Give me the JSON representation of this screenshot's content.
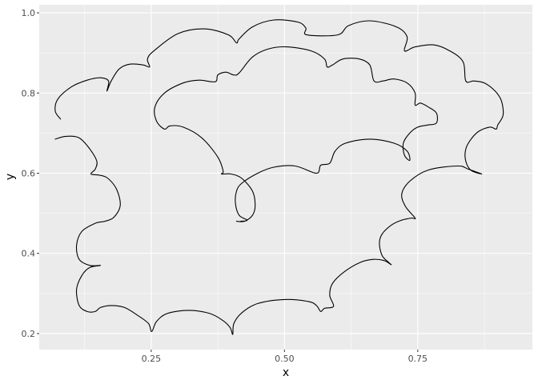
{
  "chart_data": {
    "type": "line",
    "title": "",
    "xlabel": "x",
    "ylabel": "y",
    "xlim": [
      0.04,
      0.965
    ],
    "ylim": [
      0.16,
      1.02
    ],
    "x_ticks": [
      0.25,
      0.5,
      0.75
    ],
    "x_tick_labels": [
      "0.25",
      "0.50",
      "0.75"
    ],
    "y_ticks": [
      0.2,
      0.4,
      0.6,
      0.8,
      1.0
    ],
    "y_tick_labels": [
      "0.2",
      "0.4",
      "0.6",
      "0.8",
      "1.0"
    ],
    "grid": true,
    "legend": "none",
    "colors": {
      "panel": "#ebebeb",
      "grid": "#ffffff",
      "line": "#000000",
      "tick": "#4d4d4d"
    },
    "series": [
      {
        "points": [
          [
            0.08,
            0.735
          ],
          [
            0.07,
            0.755
          ],
          [
            0.075,
            0.785
          ],
          [
            0.1,
            0.815
          ],
          [
            0.13,
            0.832
          ],
          [
            0.155,
            0.838
          ],
          [
            0.17,
            0.83
          ],
          [
            0.167,
            0.805
          ],
          [
            0.175,
            0.83
          ],
          [
            0.19,
            0.86
          ],
          [
            0.21,
            0.872
          ],
          [
            0.235,
            0.87
          ],
          [
            0.247,
            0.865
          ],
          [
            0.243,
            0.885
          ],
          [
            0.255,
            0.905
          ],
          [
            0.3,
            0.948
          ],
          [
            0.35,
            0.96
          ],
          [
            0.395,
            0.945
          ],
          [
            0.41,
            0.925
          ],
          [
            0.415,
            0.935
          ],
          [
            0.44,
            0.965
          ],
          [
            0.48,
            0.982
          ],
          [
            0.525,
            0.977
          ],
          [
            0.54,
            0.962
          ],
          [
            0.542,
            0.945
          ],
          [
            0.6,
            0.945
          ],
          [
            0.62,
            0.968
          ],
          [
            0.66,
            0.98
          ],
          [
            0.71,
            0.965
          ],
          [
            0.73,
            0.94
          ],
          [
            0.725,
            0.905
          ],
          [
            0.745,
            0.915
          ],
          [
            0.78,
            0.92
          ],
          [
            0.81,
            0.905
          ],
          [
            0.835,
            0.878
          ],
          [
            0.84,
            0.83
          ],
          [
            0.855,
            0.83
          ],
          [
            0.875,
            0.825
          ],
          [
            0.895,
            0.805
          ],
          [
            0.907,
            0.78
          ],
          [
            0.91,
            0.745
          ],
          [
            0.9,
            0.72
          ],
          [
            0.897,
            0.71
          ],
          [
            0.885,
            0.715
          ],
          [
            0.865,
            0.705
          ],
          [
            0.85,
            0.685
          ],
          [
            0.84,
            0.66
          ],
          [
            0.84,
            0.63
          ],
          [
            0.85,
            0.607
          ],
          [
            0.87,
            0.598
          ],
          [
            0.845,
            0.61
          ],
          [
            0.825,
            0.618
          ],
          [
            0.77,
            0.608
          ],
          [
            0.735,
            0.58
          ],
          [
            0.72,
            0.548
          ],
          [
            0.727,
            0.517
          ],
          [
            0.745,
            0.488
          ],
          [
            0.738,
            0.488
          ],
          [
            0.718,
            0.482
          ],
          [
            0.7,
            0.47
          ],
          [
            0.683,
            0.448
          ],
          [
            0.678,
            0.425
          ],
          [
            0.683,
            0.395
          ],
          [
            0.695,
            0.378
          ],
          [
            0.7,
            0.372
          ],
          [
            0.687,
            0.382
          ],
          [
            0.667,
            0.385
          ],
          [
            0.643,
            0.378
          ],
          [
            0.613,
            0.355
          ],
          [
            0.59,
            0.325
          ],
          [
            0.585,
            0.295
          ],
          [
            0.592,
            0.268
          ],
          [
            0.575,
            0.263
          ],
          [
            0.568,
            0.255
          ],
          [
            0.56,
            0.27
          ],
          [
            0.545,
            0.28
          ],
          [
            0.5,
            0.285
          ],
          [
            0.45,
            0.275
          ],
          [
            0.42,
            0.252
          ],
          [
            0.405,
            0.225
          ],
          [
            0.403,
            0.198
          ],
          [
            0.398,
            0.215
          ],
          [
            0.385,
            0.232
          ],
          [
            0.36,
            0.25
          ],
          [
            0.32,
            0.258
          ],
          [
            0.28,
            0.25
          ],
          [
            0.26,
            0.23
          ],
          [
            0.251,
            0.205
          ],
          [
            0.245,
            0.225
          ],
          [
            0.225,
            0.245
          ],
          [
            0.2,
            0.265
          ],
          [
            0.175,
            0.27
          ],
          [
            0.155,
            0.265
          ],
          [
            0.145,
            0.255
          ],
          [
            0.13,
            0.255
          ],
          [
            0.115,
            0.27
          ],
          [
            0.11,
            0.31
          ],
          [
            0.12,
            0.345
          ],
          [
            0.135,
            0.365
          ],
          [
            0.155,
            0.37
          ],
          [
            0.135,
            0.37
          ],
          [
            0.115,
            0.385
          ],
          [
            0.11,
            0.42
          ],
          [
            0.12,
            0.455
          ],
          [
            0.145,
            0.475
          ],
          [
            0.163,
            0.48
          ],
          [
            0.18,
            0.49
          ],
          [
            0.192,
            0.52
          ],
          [
            0.185,
            0.56
          ],
          [
            0.168,
            0.588
          ],
          [
            0.153,
            0.595
          ],
          [
            0.137,
            0.598
          ],
          [
            0.145,
            0.61
          ],
          [
            0.148,
            0.63
          ],
          [
            0.135,
            0.66
          ],
          [
            0.115,
            0.688
          ],
          [
            0.09,
            0.692
          ],
          [
            0.07,
            0.685
          ]
        ]
      },
      {
        "points": [
          [
            0.41,
            0.48
          ],
          [
            0.425,
            0.48
          ],
          [
            0.44,
            0.495
          ],
          [
            0.445,
            0.52
          ],
          [
            0.44,
            0.555
          ],
          [
            0.42,
            0.587
          ],
          [
            0.4,
            0.598
          ],
          [
            0.382,
            0.598
          ],
          [
            0.385,
            0.605
          ],
          [
            0.375,
            0.64
          ],
          [
            0.345,
            0.688
          ],
          [
            0.31,
            0.715
          ],
          [
            0.285,
            0.718
          ],
          [
            0.275,
            0.71
          ],
          [
            0.26,
            0.73
          ],
          [
            0.257,
            0.765
          ],
          [
            0.275,
            0.8
          ],
          [
            0.31,
            0.825
          ],
          [
            0.34,
            0.832
          ],
          [
            0.37,
            0.828
          ],
          [
            0.375,
            0.845
          ],
          [
            0.39,
            0.852
          ],
          [
            0.405,
            0.845
          ],
          [
            0.415,
            0.85
          ],
          [
            0.44,
            0.89
          ],
          [
            0.47,
            0.91
          ],
          [
            0.505,
            0.915
          ],
          [
            0.55,
            0.905
          ],
          [
            0.575,
            0.885
          ],
          [
            0.58,
            0.865
          ],
          [
            0.59,
            0.87
          ],
          [
            0.61,
            0.885
          ],
          [
            0.64,
            0.885
          ],
          [
            0.66,
            0.87
          ],
          [
            0.668,
            0.83
          ],
          [
            0.685,
            0.83
          ],
          [
            0.705,
            0.835
          ],
          [
            0.73,
            0.825
          ],
          [
            0.745,
            0.8
          ],
          [
            0.745,
            0.77
          ],
          [
            0.755,
            0.775
          ],
          [
            0.77,
            0.765
          ],
          [
            0.785,
            0.75
          ],
          [
            0.785,
            0.725
          ],
          [
            0.768,
            0.72
          ],
          [
            0.75,
            0.715
          ],
          [
            0.735,
            0.7
          ],
          [
            0.723,
            0.675
          ],
          [
            0.725,
            0.645
          ],
          [
            0.735,
            0.632
          ],
          [
            0.73,
            0.655
          ],
          [
            0.705,
            0.675
          ],
          [
            0.66,
            0.685
          ],
          [
            0.615,
            0.675
          ],
          [
            0.595,
            0.655
          ],
          [
            0.585,
            0.625
          ],
          [
            0.568,
            0.62
          ],
          [
            0.56,
            0.6
          ],
          [
            0.52,
            0.618
          ],
          [
            0.48,
            0.615
          ],
          [
            0.45,
            0.6
          ],
          [
            0.42,
            0.575
          ],
          [
            0.41,
            0.555
          ],
          [
            0.408,
            0.525
          ],
          [
            0.415,
            0.495
          ],
          [
            0.43,
            0.483
          ],
          [
            0.418,
            0.48
          ]
        ]
      }
    ]
  }
}
